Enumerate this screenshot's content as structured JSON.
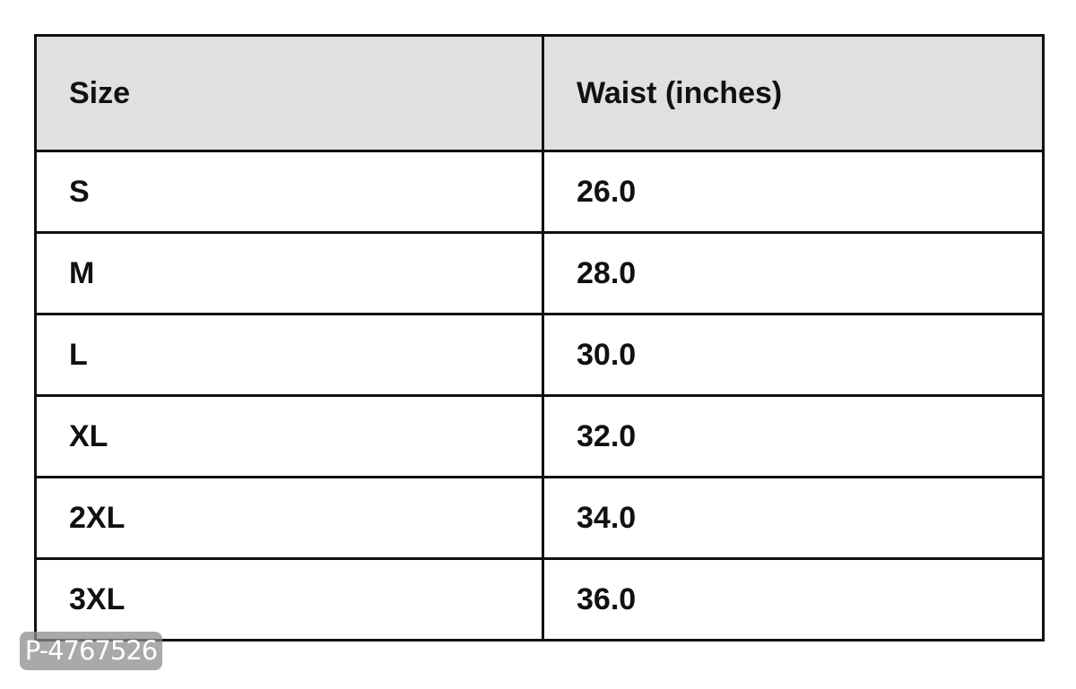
{
  "table": {
    "headers": [
      "Size",
      "Waist (inches)"
    ],
    "rows": [
      [
        "S",
        "26.0"
      ],
      [
        "M",
        "28.0"
      ],
      [
        "L",
        "30.0"
      ],
      [
        "XL",
        "32.0"
      ],
      [
        "2XL",
        "34.0"
      ],
      [
        "3XL",
        "36.0"
      ]
    ],
    "header_bg": "#e0e0e0"
  },
  "watermark": "P-4767526"
}
